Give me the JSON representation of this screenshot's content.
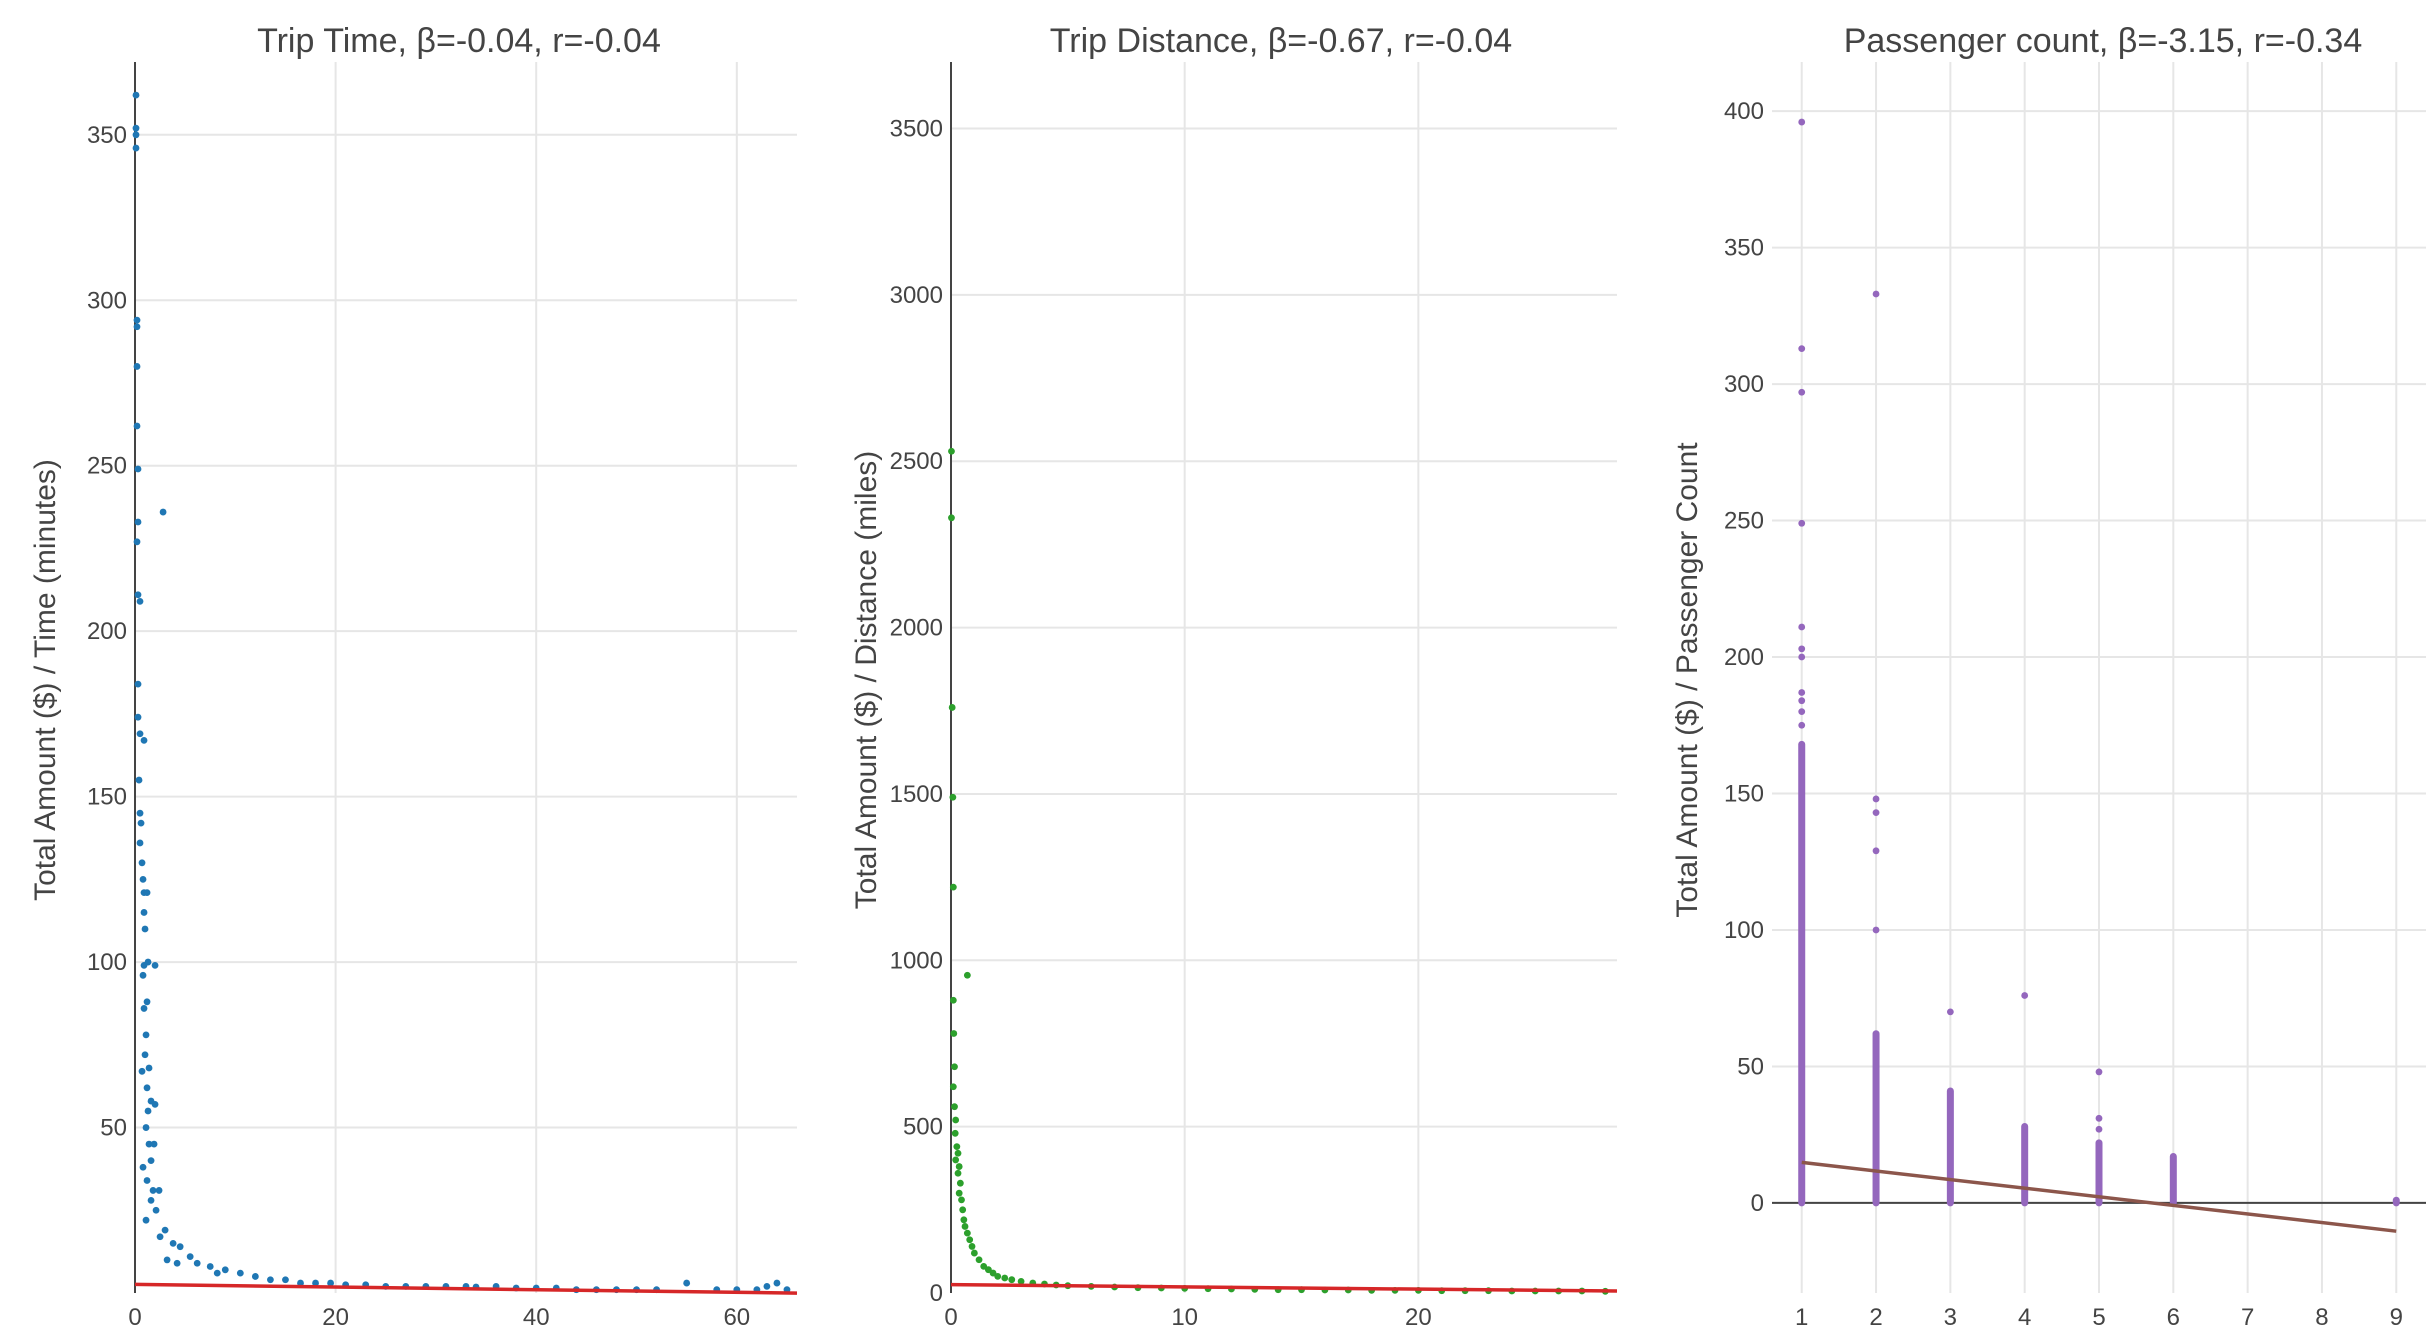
{
  "chart_data": [
    {
      "type": "scatter",
      "title": "Trip Time, β=-0.04, r=-0.04",
      "xlabel": "",
      "ylabel": "Total Amount ($) / Time (minutes)",
      "xlim": [
        0,
        66
      ],
      "ylim": [
        0,
        372
      ],
      "xticks": [
        0,
        20,
        40,
        60
      ],
      "yticks": [
        50,
        100,
        150,
        200,
        250,
        300,
        350
      ],
      "grid": true,
      "marker_color": "#1f77b4",
      "line_color": "#d62728",
      "fit": {
        "slope": -0.04,
        "intercept": 2.6
      },
      "points": [
        [
          0.1,
          362
        ],
        [
          0.1,
          352
        ],
        [
          0.1,
          350
        ],
        [
          0.1,
          346
        ],
        [
          0.2,
          294
        ],
        [
          0.2,
          292
        ],
        [
          0.2,
          280
        ],
        [
          0.2,
          262
        ],
        [
          0.3,
          249
        ],
        [
          0.3,
          233
        ],
        [
          0.2,
          227
        ],
        [
          0.3,
          211
        ],
        [
          0.5,
          209
        ],
        [
          2.8,
          236
        ],
        [
          0.3,
          184
        ],
        [
          0.3,
          174
        ],
        [
          0.5,
          169
        ],
        [
          0.9,
          167
        ],
        [
          0.4,
          155
        ],
        [
          0.5,
          145
        ],
        [
          0.6,
          142
        ],
        [
          0.5,
          136
        ],
        [
          0.7,
          130
        ],
        [
          0.8,
          125
        ],
        [
          0.9,
          121
        ],
        [
          1.2,
          121
        ],
        [
          0.9,
          115
        ],
        [
          1.0,
          110
        ],
        [
          1.3,
          100
        ],
        [
          0.9,
          99
        ],
        [
          0.8,
          96
        ],
        [
          2.0,
          99
        ],
        [
          1.2,
          88
        ],
        [
          0.9,
          86
        ],
        [
          1.1,
          78
        ],
        [
          1.0,
          72
        ],
        [
          0.7,
          67
        ],
        [
          1.4,
          68
        ],
        [
          1.2,
          62
        ],
        [
          1.6,
          58
        ],
        [
          2.0,
          57
        ],
        [
          1.3,
          55
        ],
        [
          1.1,
          50
        ],
        [
          1.4,
          45
        ],
        [
          1.9,
          45
        ],
        [
          1.6,
          40
        ],
        [
          0.8,
          38
        ],
        [
          1.2,
          34
        ],
        [
          1.8,
          31
        ],
        [
          2.4,
          31
        ],
        [
          1.6,
          28
        ],
        [
          2.1,
          25
        ],
        [
          1.1,
          22
        ],
        [
          3.0,
          19
        ],
        [
          2.5,
          17
        ],
        [
          3.8,
          15
        ],
        [
          4.5,
          14
        ],
        [
          5.5,
          11
        ],
        [
          3.2,
          10
        ],
        [
          4.2,
          9
        ],
        [
          6.2,
          9
        ],
        [
          7.5,
          8
        ],
        [
          9.0,
          7
        ],
        [
          8.2,
          6
        ],
        [
          10.5,
          6
        ],
        [
          12.0,
          5
        ],
        [
          13.5,
          4
        ],
        [
          15.0,
          4
        ],
        [
          16.5,
          3
        ],
        [
          18.0,
          3
        ],
        [
          19.5,
          3
        ],
        [
          21.0,
          2.5
        ],
        [
          23.0,
          2.5
        ],
        [
          25.0,
          2
        ],
        [
          27.0,
          2
        ],
        [
          29.0,
          2
        ],
        [
          31.0,
          2
        ],
        [
          33.0,
          2
        ],
        [
          34.0,
          1.8
        ],
        [
          36.0,
          2
        ],
        [
          38.0,
          1.5
        ],
        [
          40.0,
          1.5
        ],
        [
          42.0,
          1.5
        ],
        [
          44.0,
          1
        ],
        [
          46.0,
          1
        ],
        [
          48.0,
          1
        ],
        [
          50.0,
          1
        ],
        [
          52.0,
          1
        ],
        [
          55.0,
          3
        ],
        [
          58.0,
          1
        ],
        [
          60.0,
          1
        ],
        [
          62.0,
          1
        ],
        [
          63.0,
          2
        ],
        [
          64.0,
          3
        ],
        [
          65.0,
          1
        ]
      ]
    },
    {
      "type": "scatter",
      "title": "Trip Distance, β=-0.67, r=-0.04",
      "xlabel": "",
      "ylabel": "Total Amount ($) / Distance (miles)",
      "xlim": [
        0,
        28.5
      ],
      "ylim": [
        0,
        3700
      ],
      "xticks": [
        0,
        10,
        20
      ],
      "yticks": [
        0,
        500,
        1000,
        1500,
        2000,
        2500,
        3000,
        3500
      ],
      "grid": true,
      "marker_color": "#2ca02c",
      "line_color": "#d62728",
      "fit": {
        "slope": -0.67,
        "intercept": 25
      },
      "points": [
        [
          0.02,
          2530
        ],
        [
          0.02,
          2330
        ],
        [
          0.05,
          1760
        ],
        [
          0.08,
          1490
        ],
        [
          0.1,
          1220
        ],
        [
          0.7,
          955
        ],
        [
          0.1,
          880
        ],
        [
          0.12,
          780
        ],
        [
          0.15,
          680
        ],
        [
          0.1,
          620
        ],
        [
          0.15,
          560
        ],
        [
          0.2,
          520
        ],
        [
          0.18,
          480
        ],
        [
          0.25,
          440
        ],
        [
          0.3,
          420
        ],
        [
          0.2,
          400
        ],
        [
          0.35,
          380
        ],
        [
          0.3,
          360
        ],
        [
          0.4,
          330
        ],
        [
          0.35,
          300
        ],
        [
          0.45,
          280
        ],
        [
          0.5,
          250
        ],
        [
          0.55,
          220
        ],
        [
          0.6,
          200
        ],
        [
          0.7,
          180
        ],
        [
          0.8,
          160
        ],
        [
          0.9,
          140
        ],
        [
          1.0,
          120
        ],
        [
          1.2,
          100
        ],
        [
          1.4,
          80
        ],
        [
          1.6,
          70
        ],
        [
          1.8,
          60
        ],
        [
          2.0,
          50
        ],
        [
          2.3,
          45
        ],
        [
          2.6,
          40
        ],
        [
          3.0,
          35
        ],
        [
          3.5,
          30
        ],
        [
          4.0,
          27
        ],
        [
          4.5,
          24
        ],
        [
          5.0,
          22
        ],
        [
          6.0,
          20
        ],
        [
          7.0,
          18
        ],
        [
          8.0,
          16
        ],
        [
          9.0,
          15
        ],
        [
          10.0,
          14
        ],
        [
          11.0,
          13
        ],
        [
          12.0,
          12
        ],
        [
          13.0,
          11
        ],
        [
          14.0,
          10
        ],
        [
          15.0,
          10
        ],
        [
          16.0,
          9
        ],
        [
          17.0,
          9
        ],
        [
          18.0,
          8
        ],
        [
          19.0,
          8
        ],
        [
          20.0,
          8
        ],
        [
          21.0,
          7
        ],
        [
          22.0,
          7
        ],
        [
          23.0,
          7
        ],
        [
          24.0,
          6
        ],
        [
          25.0,
          6
        ],
        [
          26.0,
          6
        ],
        [
          27.0,
          6
        ],
        [
          28.0,
          5
        ]
      ]
    },
    {
      "type": "scatter",
      "title": "Passenger count, β=-3.15, r=-0.34",
      "xlabel": "",
      "ylabel": "Total Amount ($) / Passenger Count",
      "xlim": [
        0.6,
        9.4
      ],
      "ylim": [
        -33,
        418
      ],
      "xticks": [
        1,
        2,
        3,
        4,
        5,
        6,
        7,
        8,
        9
      ],
      "yticks": [
        0,
        50,
        100,
        150,
        200,
        250,
        300,
        350,
        400
      ],
      "grid": true,
      "marker_color": "#9467bd",
      "line_color": "#8c564b",
      "fit": {
        "slope": -3.15,
        "intercept": 18.0,
        "x_range": [
          1,
          9
        ]
      },
      "columns": [
        {
          "x": 1,
          "range": [
            0,
            168
          ],
          "outliers": [
            396,
            313,
            297,
            249,
            211,
            203,
            200,
            187,
            184,
            180,
            175
          ]
        },
        {
          "x": 2,
          "range": [
            0,
            62
          ],
          "outliers": [
            333,
            148,
            143,
            129,
            100
          ]
        },
        {
          "x": 3,
          "range": [
            0,
            41
          ],
          "outliers": [
            70
          ]
        },
        {
          "x": 4,
          "range": [
            0,
            28
          ],
          "outliers": [
            76
          ]
        },
        {
          "x": 5,
          "range": [
            0,
            22
          ],
          "outliers": [
            48,
            31,
            27
          ]
        },
        {
          "x": 6,
          "range": [
            0,
            17
          ],
          "outliers": []
        },
        {
          "x": 9,
          "range": [
            0,
            1
          ],
          "outliers": []
        }
      ]
    }
  ]
}
